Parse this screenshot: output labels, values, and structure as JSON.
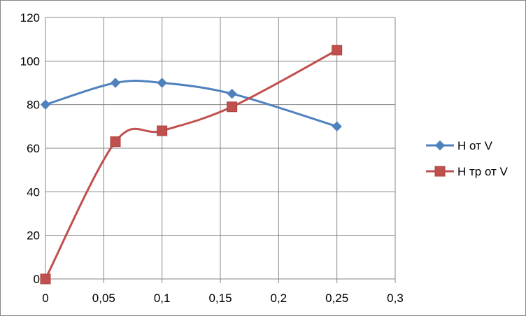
{
  "chart_data": {
    "type": "line",
    "title": "",
    "xlabel": "",
    "ylabel": "",
    "xlim": [
      0,
      0.3
    ],
    "ylim": [
      0,
      120
    ],
    "xticks": [
      0,
      0.05,
      0.1,
      0.15,
      0.2,
      0.25,
      0.3
    ],
    "xtick_labels": [
      "0",
      "0,05",
      "0,1",
      "0,15",
      "0,2",
      "0,25",
      "0,3"
    ],
    "yticks": [
      0,
      20,
      40,
      60,
      80,
      100,
      120
    ],
    "ytick_labels": [
      "0",
      "20",
      "40",
      "60",
      "80",
      "100",
      "120"
    ],
    "grid": true,
    "legend_position": "right",
    "smooth": true,
    "series": [
      {
        "name": "H от V",
        "color": "#4f81bd",
        "marker": "diamond",
        "x": [
          0,
          0.06,
          0.1,
          0.16,
          0.25
        ],
        "y": [
          80,
          90,
          90,
          85,
          70
        ]
      },
      {
        "name": "H тр от V",
        "color": "#c0504d",
        "marker": "square",
        "x": [
          0,
          0.06,
          0.1,
          0.16,
          0.25
        ],
        "y": [
          0,
          63,
          68,
          79,
          105
        ]
      }
    ]
  }
}
